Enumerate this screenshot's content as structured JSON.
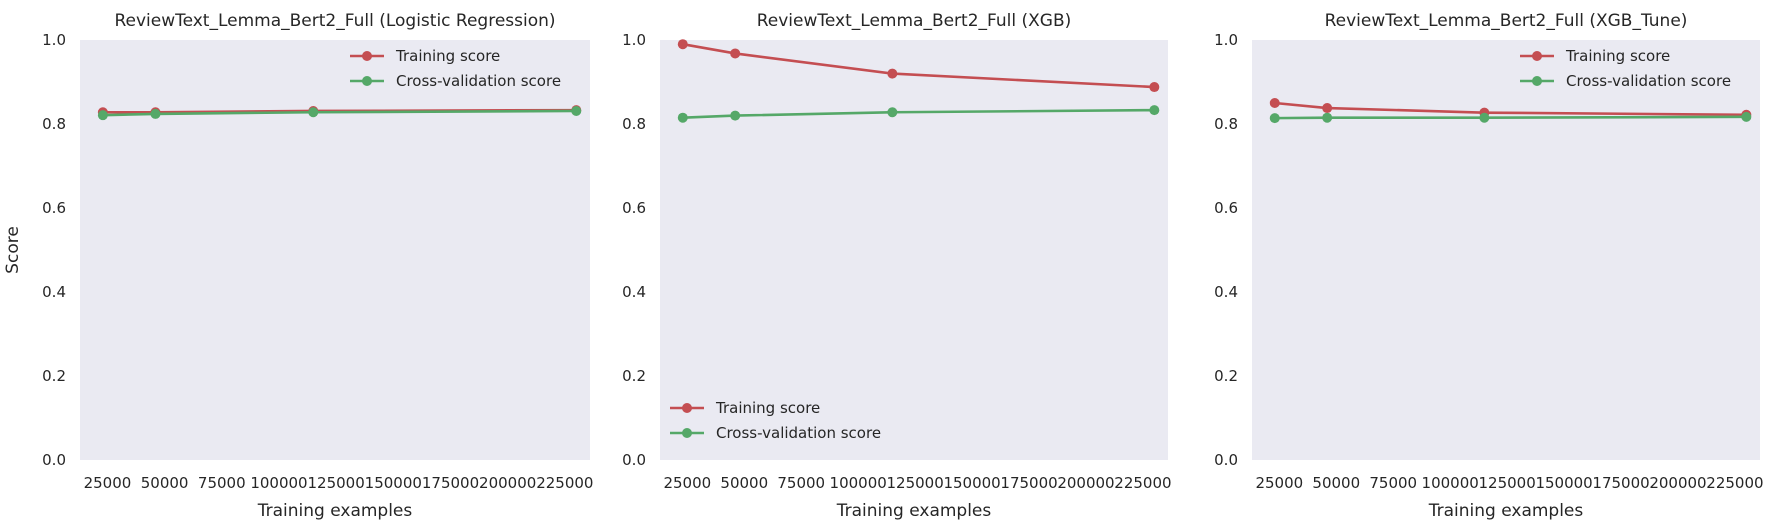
{
  "colors": {
    "background": "#eaeaf2",
    "training": "#c44e52",
    "cross_validation": "#55a868",
    "text": "#262626"
  },
  "chart_data": [
    {
      "type": "line",
      "title": "ReviewText_Lemma_Bert2_Full (Logistic Regression)",
      "xlabel": "Training examples",
      "ylabel": "Score",
      "x": [
        23000,
        46000,
        115000,
        230000
      ],
      "xticks": [
        25000,
        50000,
        75000,
        100000,
        125000,
        150000,
        175000,
        200000,
        225000
      ],
      "xtick_labels": [
        "25000",
        "50000",
        "75000",
        "100000",
        "125000",
        "150000",
        "175000",
        "200000",
        "225000"
      ],
      "yticks": [
        0.0,
        0.2,
        0.4,
        0.6,
        0.8,
        1.0
      ],
      "ytick_labels": [
        "0.0",
        "0.2",
        "0.4",
        "0.6",
        "0.8",
        "1.0"
      ],
      "xlim": [
        13000,
        236000
      ],
      "ylim": [
        0.0,
        1.0
      ],
      "grid": false,
      "legend_position": "top-right",
      "series": [
        {
          "name": "Training score",
          "color": "#c44e52",
          "values": [
            0.828,
            0.828,
            0.831,
            0.833
          ]
        },
        {
          "name": "Cross-validation score",
          "color": "#55a868",
          "values": [
            0.821,
            0.824,
            0.828,
            0.831
          ]
        }
      ]
    },
    {
      "type": "line",
      "title": "ReviewText_Lemma_Bert2_Full (XGB)",
      "xlabel": "Training examples",
      "ylabel": "",
      "x": [
        23000,
        46000,
        115000,
        230000
      ],
      "xticks": [
        25000,
        50000,
        75000,
        100000,
        125000,
        150000,
        175000,
        200000,
        225000
      ],
      "xtick_labels": [
        "25000",
        "50000",
        "75000",
        "100000",
        "125000",
        "150000",
        "175000",
        "200000",
        "225000"
      ],
      "yticks": [
        0.0,
        0.2,
        0.4,
        0.6,
        0.8,
        1.0
      ],
      "ytick_labels": [
        "0.0",
        "0.2",
        "0.4",
        "0.6",
        "0.8",
        "1.0"
      ],
      "xlim": [
        13000,
        236000
      ],
      "ylim": [
        0.0,
        1.0
      ],
      "grid": false,
      "legend_position": "bottom-left",
      "series": [
        {
          "name": "Training score",
          "color": "#c44e52",
          "values": [
            0.99,
            0.968,
            0.92,
            0.888
          ]
        },
        {
          "name": "Cross-validation score",
          "color": "#55a868",
          "values": [
            0.815,
            0.82,
            0.828,
            0.833
          ]
        }
      ]
    },
    {
      "type": "line",
      "title": "ReviewText_Lemma_Bert2_Full (XGB_Tune)",
      "xlabel": "Training examples",
      "ylabel": "",
      "x": [
        23000,
        46000,
        115000,
        230000
      ],
      "xticks": [
        25000,
        50000,
        75000,
        100000,
        125000,
        150000,
        175000,
        200000,
        225000
      ],
      "xtick_labels": [
        "25000",
        "50000",
        "75000",
        "100000",
        "125000",
        "150000",
        "175000",
        "200000",
        "225000"
      ],
      "yticks": [
        0.0,
        0.2,
        0.4,
        0.6,
        0.8,
        1.0
      ],
      "ytick_labels": [
        "0.0",
        "0.2",
        "0.4",
        "0.6",
        "0.8",
        "1.0"
      ],
      "xlim": [
        13000,
        236000
      ],
      "ylim": [
        0.0,
        1.0
      ],
      "grid": false,
      "legend_position": "top-right",
      "series": [
        {
          "name": "Training score",
          "color": "#c44e52",
          "values": [
            0.85,
            0.838,
            0.827,
            0.822
          ]
        },
        {
          "name": "Cross-validation score",
          "color": "#55a868",
          "values": [
            0.814,
            0.815,
            0.815,
            0.817
          ]
        }
      ]
    }
  ]
}
